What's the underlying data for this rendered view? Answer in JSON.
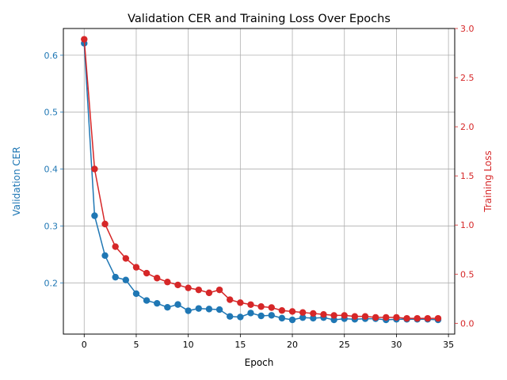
{
  "chart_data": {
    "type": "line",
    "title": "Validation CER and Training Loss Over Epochs",
    "xlabel": "Epoch",
    "xlim": [
      -2,
      35.6
    ],
    "x_ticks": [
      0,
      5,
      10,
      15,
      20,
      25,
      30,
      35
    ],
    "grid": true,
    "legend": "none",
    "x": [
      0,
      1,
      2,
      3,
      4,
      5,
      6,
      7,
      8,
      9,
      10,
      11,
      12,
      13,
      14,
      15,
      16,
      17,
      18,
      19,
      20,
      21,
      22,
      23,
      24,
      25,
      26,
      27,
      28,
      29,
      30,
      31,
      32,
      33,
      34
    ],
    "left_axis": {
      "label": "Validation CER",
      "color": "#1f77b4",
      "ylim": [
        0.11,
        0.647
      ],
      "ticks": [
        0.2,
        0.3,
        0.4,
        0.5,
        0.6
      ],
      "tick_labels": [
        "0.2",
        "0.3",
        "0.4",
        "0.5",
        "0.6"
      ]
    },
    "right_axis": {
      "label": "Training Loss",
      "color": "#d62728",
      "ylim": [
        -0.11,
        3.0
      ],
      "ticks": [
        0.0,
        0.5,
        1.0,
        1.5,
        2.0,
        2.5,
        3.0
      ],
      "tick_labels": [
        "0.0",
        "0.5",
        "1.0",
        "1.5",
        "2.0",
        "2.5",
        "3.0"
      ]
    },
    "series": [
      {
        "name": "Validation CER",
        "axis": "left",
        "color": "#1f77b4",
        "values": [
          0.621,
          0.318,
          0.248,
          0.21,
          0.205,
          0.181,
          0.169,
          0.164,
          0.157,
          0.162,
          0.151,
          0.155,
          0.154,
          0.153,
          0.141,
          0.14,
          0.147,
          0.142,
          0.143,
          0.138,
          0.135,
          0.139,
          0.138,
          0.139,
          0.135,
          0.137,
          0.136,
          0.137,
          0.137,
          0.135,
          0.136,
          0.136,
          0.136,
          0.136,
          0.135
        ]
      },
      {
        "name": "Training Loss",
        "axis": "right",
        "color": "#d62728",
        "values": [
          2.89,
          1.57,
          1.01,
          0.78,
          0.66,
          0.57,
          0.51,
          0.46,
          0.42,
          0.39,
          0.36,
          0.34,
          0.31,
          0.34,
          0.24,
          0.21,
          0.19,
          0.17,
          0.16,
          0.13,
          0.12,
          0.11,
          0.1,
          0.09,
          0.08,
          0.08,
          0.07,
          0.07,
          0.06,
          0.06,
          0.06,
          0.05,
          0.05,
          0.05,
          0.05
        ]
      }
    ]
  }
}
